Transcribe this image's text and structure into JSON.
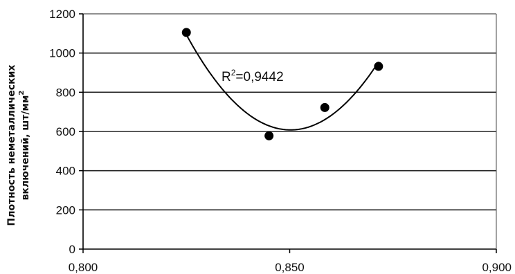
{
  "chart_data": {
    "type": "scatter",
    "title": "",
    "xlabel": "",
    "ylabel_line1": "Плотность неметаллических",
    "ylabel_line2": "включений, шт/мм",
    "ylabel_sup": "2",
    "xlim": [
      0.8,
      0.9
    ],
    "ylim": [
      0,
      1200
    ],
    "x_ticks": [
      "0,800",
      "0,850",
      "0,900"
    ],
    "y_ticks": [
      "0",
      "200",
      "400",
      "600",
      "800",
      "1000",
      "1200"
    ],
    "grid": "horizontal",
    "series": [
      {
        "x": [
          0.825,
          0.845,
          0.8585,
          0.8715
        ],
        "y": [
          1105,
          578,
          722,
          932
        ],
        "trendline": "polynomial-2",
        "r2_label_prefix": "R",
        "r2_label_sup": "2",
        "r2_label_value": "=0,9442"
      }
    ]
  }
}
